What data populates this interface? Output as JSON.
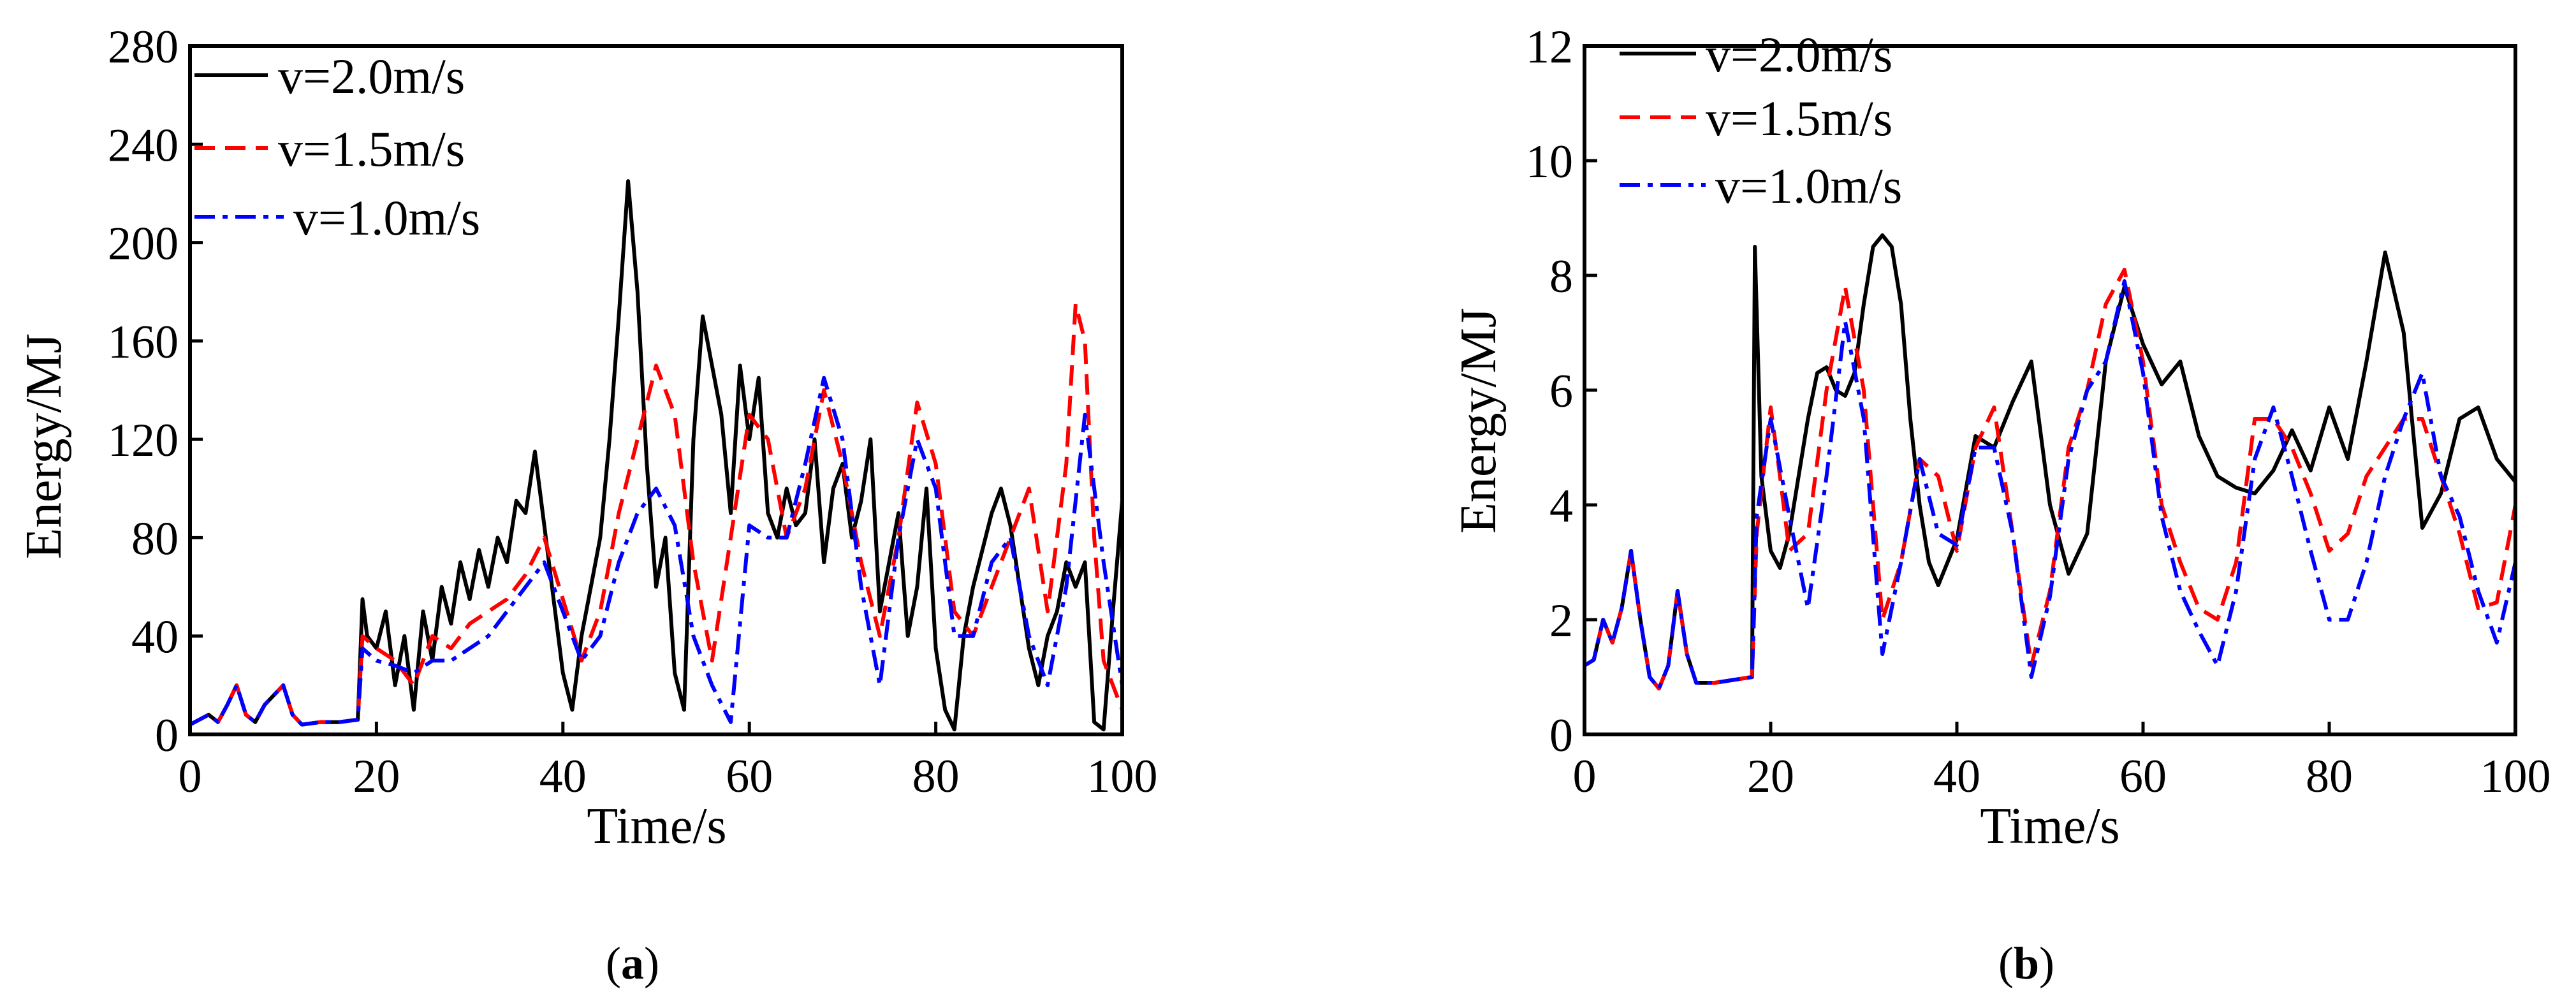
{
  "chart_data": [
    {
      "type": "line",
      "panel": "a",
      "xlabel": "Time/s",
      "ylabel": "Energy/MJ",
      "xlim": [
        0,
        100
      ],
      "ylim": [
        0,
        280
      ],
      "xticks": [
        "0",
        "20",
        "40",
        "60",
        "80",
        "100"
      ],
      "yticks": [
        "0",
        "40",
        "80",
        "120",
        "160",
        "200",
        "240",
        "280"
      ],
      "legend_position": "top-left",
      "series": [
        {
          "name": "v=2.0m/s",
          "color": "#000000",
          "style": "solid",
          "x": [
            0,
            2,
            3,
            4,
            5,
            6,
            7,
            8,
            9,
            10,
            11,
            12,
            14,
            16,
            18,
            18.5,
            19,
            20,
            21,
            22,
            23,
            24,
            25,
            26,
            27,
            28,
            29,
            30,
            31,
            32,
            33,
            34,
            35,
            36,
            37,
            38,
            39,
            40,
            41,
            42,
            43,
            44,
            45,
            46,
            47,
            48,
            49,
            50,
            51,
            52,
            53,
            54,
            55,
            56,
            57,
            58,
            59,
            60,
            61,
            62,
            63,
            64,
            65,
            66,
            67,
            68,
            69,
            70,
            71,
            72,
            73,
            74,
            75,
            76,
            77,
            78,
            79,
            80,
            81,
            82,
            83,
            84,
            85,
            86,
            87,
            88,
            89,
            90,
            91,
            92,
            93,
            94,
            95,
            96,
            97,
            98,
            99,
            100
          ],
          "y": [
            4,
            8,
            5,
            12,
            20,
            8,
            5,
            12,
            16,
            20,
            8,
            4,
            5,
            5,
            6,
            55,
            40,
            35,
            50,
            20,
            40,
            10,
            50,
            30,
            60,
            45,
            70,
            55,
            75,
            60,
            80,
            70,
            95,
            90,
            115,
            85,
            55,
            25,
            10,
            40,
            60,
            80,
            120,
            170,
            225,
            180,
            110,
            60,
            80,
            25,
            10,
            120,
            170,
            150,
            130,
            90,
            150,
            120,
            145,
            90,
            80,
            100,
            85,
            90,
            120,
            70,
            100,
            110,
            80,
            95,
            120,
            50,
            70,
            90,
            40,
            60,
            100,
            35,
            10,
            2,
            40,
            60,
            75,
            90,
            100,
            85,
            60,
            35,
            20,
            40,
            50,
            70,
            60,
            70,
            5,
            2,
            50,
            95
          ]
        },
        {
          "name": "v=1.5m/s",
          "color": "#ff0000",
          "style": "dashed",
          "x": [
            0,
            2,
            3,
            4,
            5,
            6,
            7,
            8,
            9,
            10,
            11,
            12,
            14,
            16,
            18,
            18.5,
            20,
            22,
            24,
            26,
            28,
            30,
            32,
            34,
            36,
            38,
            40,
            42,
            44,
            46,
            48,
            50,
            52,
            54,
            56,
            58,
            60,
            62,
            64,
            66,
            68,
            70,
            72,
            74,
            76,
            78,
            80,
            82,
            84,
            86,
            88,
            90,
            92,
            94,
            95,
            96,
            97,
            98,
            100
          ],
          "y": [
            4,
            8,
            5,
            12,
            20,
            8,
            5,
            12,
            16,
            20,
            8,
            4,
            5,
            5,
            6,
            40,
            35,
            30,
            20,
            40,
            35,
            45,
            50,
            55,
            65,
            80,
            55,
            30,
            50,
            90,
            120,
            150,
            130,
            70,
            30,
            80,
            130,
            120,
            80,
            100,
            140,
            110,
            70,
            40,
            80,
            135,
            110,
            50,
            40,
            60,
            80,
            100,
            50,
            110,
            175,
            160,
            80,
            30,
            10
          ]
        },
        {
          "name": "v=1.0m/s",
          "color": "#0000ff",
          "style": "dashdot",
          "x": [
            0,
            2,
            3,
            4,
            5,
            6,
            7,
            8,
            9,
            10,
            11,
            12,
            14,
            16,
            18,
            18.5,
            20,
            22,
            24,
            26,
            28,
            30,
            32,
            34,
            36,
            38,
            40,
            42,
            44,
            46,
            48,
            50,
            52,
            54,
            56,
            58,
            60,
            62,
            64,
            66,
            68,
            70,
            72,
            74,
            76,
            78,
            80,
            82,
            84,
            86,
            88,
            90,
            92,
            94,
            96,
            98,
            100
          ],
          "y": [
            4,
            8,
            5,
            12,
            20,
            8,
            5,
            12,
            16,
            20,
            8,
            4,
            5,
            5,
            6,
            35,
            30,
            28,
            25,
            30,
            30,
            35,
            40,
            50,
            60,
            70,
            50,
            30,
            40,
            70,
            90,
            100,
            85,
            40,
            20,
            5,
            85,
            80,
            80,
            110,
            145,
            120,
            60,
            20,
            80,
            120,
            100,
            40,
            40,
            70,
            80,
            40,
            20,
            60,
            130,
            70,
            20
          ]
        }
      ]
    },
    {
      "type": "line",
      "panel": "b",
      "xlabel": "Time/s",
      "ylabel": "Energy/MJ",
      "xlim": [
        0,
        100
      ],
      "ylim": [
        0,
        12
      ],
      "xticks": [
        "0",
        "20",
        "40",
        "60",
        "80",
        "100"
      ],
      "yticks": [
        "0",
        "2",
        "4",
        "6",
        "8",
        "10",
        "12"
      ],
      "legend_position": "top-left",
      "series": [
        {
          "name": "v=2.0m/s",
          "color": "#000000",
          "style": "solid",
          "x": [
            0,
            1,
            2,
            3,
            4,
            5,
            6,
            7,
            8,
            9,
            10,
            11,
            12,
            14,
            16,
            18,
            18.3,
            19,
            20,
            21,
            22,
            23,
            24,
            25,
            26,
            27,
            28,
            29,
            30,
            31,
            32,
            33,
            34,
            35,
            36,
            37,
            38,
            40,
            42,
            44,
            46,
            48,
            50,
            52,
            54,
            56,
            58,
            60,
            62,
            64,
            66,
            68,
            70,
            72,
            74,
            76,
            78,
            80,
            82,
            84,
            86,
            88,
            90,
            92,
            94,
            96,
            98,
            100
          ],
          "y": [
            1.2,
            1.3,
            2,
            1.6,
            2.2,
            3.2,
            2,
            1,
            0.8,
            1.2,
            2.5,
            1.4,
            0.9,
            0.9,
            0.95,
            1,
            8.5,
            4.5,
            3.2,
            2.9,
            3.5,
            4.5,
            5.5,
            6.3,
            6.4,
            6,
            5.9,
            6.3,
            7.5,
            8.5,
            8.7,
            8.5,
            7.5,
            5.5,
            4,
            3,
            2.6,
            3.4,
            5.2,
            5,
            5.8,
            6.5,
            4,
            2.8,
            3.5,
            6.5,
            7.8,
            6.8,
            6.1,
            6.5,
            5.2,
            4.5,
            4.3,
            4.2,
            4.6,
            5.3,
            4.6,
            5.7,
            4.8,
            6.5,
            8.4,
            7,
            3.6,
            4.2,
            5.5,
            5.7,
            4.8,
            4.4
          ]
        },
        {
          "name": "v=1.5m/s",
          "color": "#ff0000",
          "style": "dashed",
          "x": [
            0,
            1,
            2,
            3,
            4,
            5,
            6,
            7,
            8,
            9,
            10,
            11,
            12,
            14,
            16,
            18,
            18.5,
            20,
            21,
            22,
            24,
            26,
            28,
            30,
            32,
            34,
            36,
            38,
            40,
            42,
            44,
            46,
            48,
            50,
            52,
            54,
            56,
            58,
            60,
            62,
            64,
            66,
            68,
            70,
            72,
            74,
            76,
            78,
            80,
            82,
            84,
            86,
            88,
            90,
            92,
            94,
            96,
            98,
            100
          ],
          "y": [
            1.2,
            1.3,
            2,
            1.6,
            2.2,
            3.2,
            2,
            1,
            0.8,
            1.2,
            2.5,
            1.4,
            0.9,
            0.9,
            0.95,
            1,
            3.5,
            5.7,
            4.5,
            3.2,
            3.5,
            6,
            7.8,
            6,
            2,
            3,
            4.8,
            4.5,
            3.2,
            5,
            5.7,
            3.5,
            1.2,
            2.5,
            5,
            6,
            7.5,
            8.1,
            6.5,
            4,
            3,
            2.2,
            2,
            3,
            5.5,
            5.5,
            5,
            4.2,
            3.2,
            3.5,
            4.5,
            5,
            5.5,
            5.5,
            4.5,
            3.5,
            2.2,
            2.3,
            4
          ]
        },
        {
          "name": "v=1.0m/s",
          "color": "#0000ff",
          "style": "dashdot",
          "x": [
            0,
            1,
            2,
            3,
            4,
            5,
            6,
            7,
            8,
            9,
            10,
            11,
            12,
            14,
            16,
            18,
            18.5,
            20,
            22,
            24,
            26,
            28,
            30,
            32,
            34,
            36,
            38,
            40,
            42,
            44,
            46,
            48,
            50,
            52,
            54,
            56,
            58,
            60,
            62,
            64,
            66,
            68,
            70,
            72,
            74,
            76,
            78,
            80,
            82,
            84,
            86,
            88,
            90,
            92,
            94,
            96,
            98,
            100
          ],
          "y": [
            1.2,
            1.3,
            2,
            1.6,
            2.2,
            3.2,
            2,
            1,
            0.8,
            1.2,
            2.5,
            1.4,
            0.9,
            0.9,
            0.95,
            1,
            3.8,
            5.5,
            3.8,
            2.2,
            4.5,
            7.2,
            5.5,
            1.4,
            3,
            4.8,
            3.5,
            3.3,
            5,
            5,
            3.5,
            1,
            2.4,
            4.8,
            6,
            6.5,
            7.9,
            6.3,
            3.8,
            2.5,
            1.8,
            1.2,
            2.5,
            4.8,
            5.7,
            4.5,
            3.2,
            2,
            2,
            3,
            4.5,
            5.5,
            6.3,
            4.5,
            3.8,
            2.5,
            1.6,
            3
          ]
        }
      ]
    }
  ],
  "labels": {
    "panel_a": "a",
    "panel_b": "b"
  }
}
